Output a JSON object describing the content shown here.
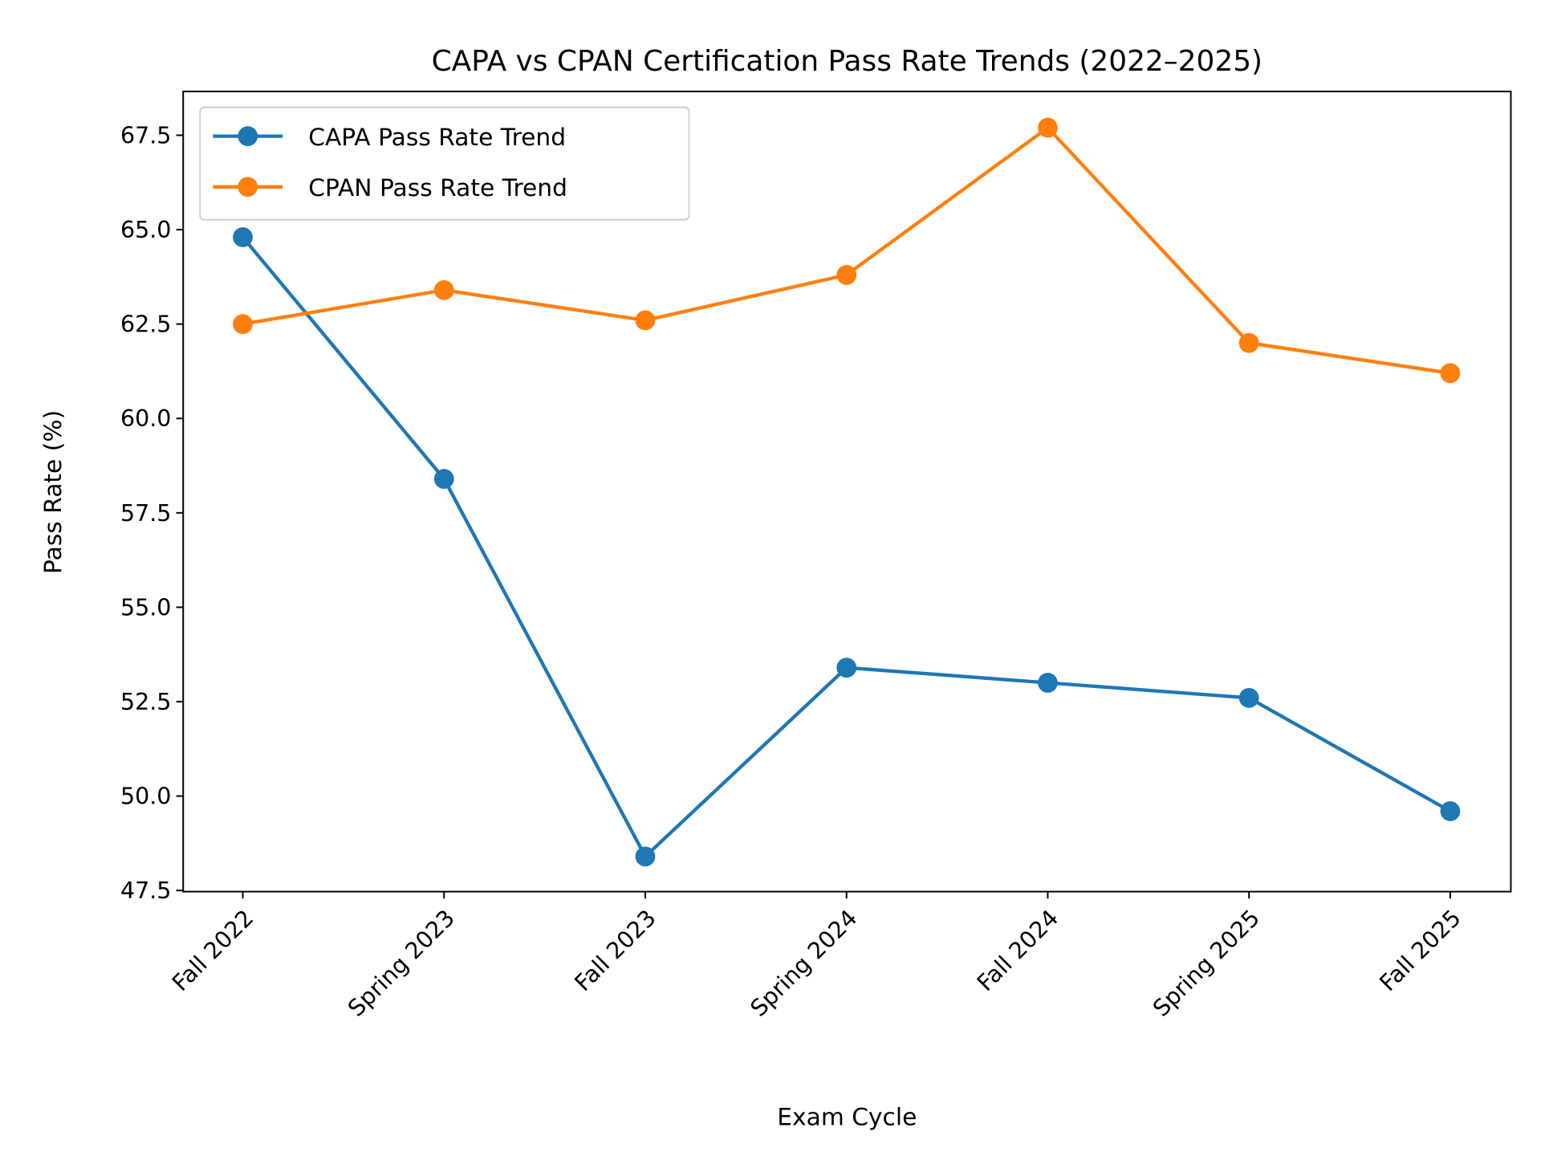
{
  "chart_data": {
    "type": "line",
    "title": "CAPA vs CPAN Certification Pass Rate Trends (2022–2025)",
    "xlabel": "Exam Cycle",
    "ylabel": "Pass Rate (%)",
    "categories": [
      "Fall 2022",
      "Spring 2023",
      "Fall 2023",
      "Spring 2024",
      "Fall 2024",
      "Spring 2025",
      "Fall 2025"
    ],
    "ylim": [
      47.47,
      68.66
    ],
    "yticks": [
      "47.5",
      "50.0",
      "52.5",
      "55.0",
      "57.5",
      "60.0",
      "62.5",
      "65.0",
      "67.5"
    ],
    "grid": false,
    "legend_position": "top-left",
    "series": [
      {
        "name": "CAPA Pass Rate Trend",
        "color": "#1f77b4",
        "marker": "circle",
        "values": [
          64.8,
          58.4,
          48.4,
          53.4,
          53.0,
          52.6,
          49.6
        ]
      },
      {
        "name": "CPAN Pass Rate Trend",
        "color": "#ff7f0e",
        "marker": "circle",
        "values": [
          62.5,
          63.4,
          62.6,
          63.8,
          67.7,
          62.0,
          61.2
        ]
      }
    ]
  }
}
